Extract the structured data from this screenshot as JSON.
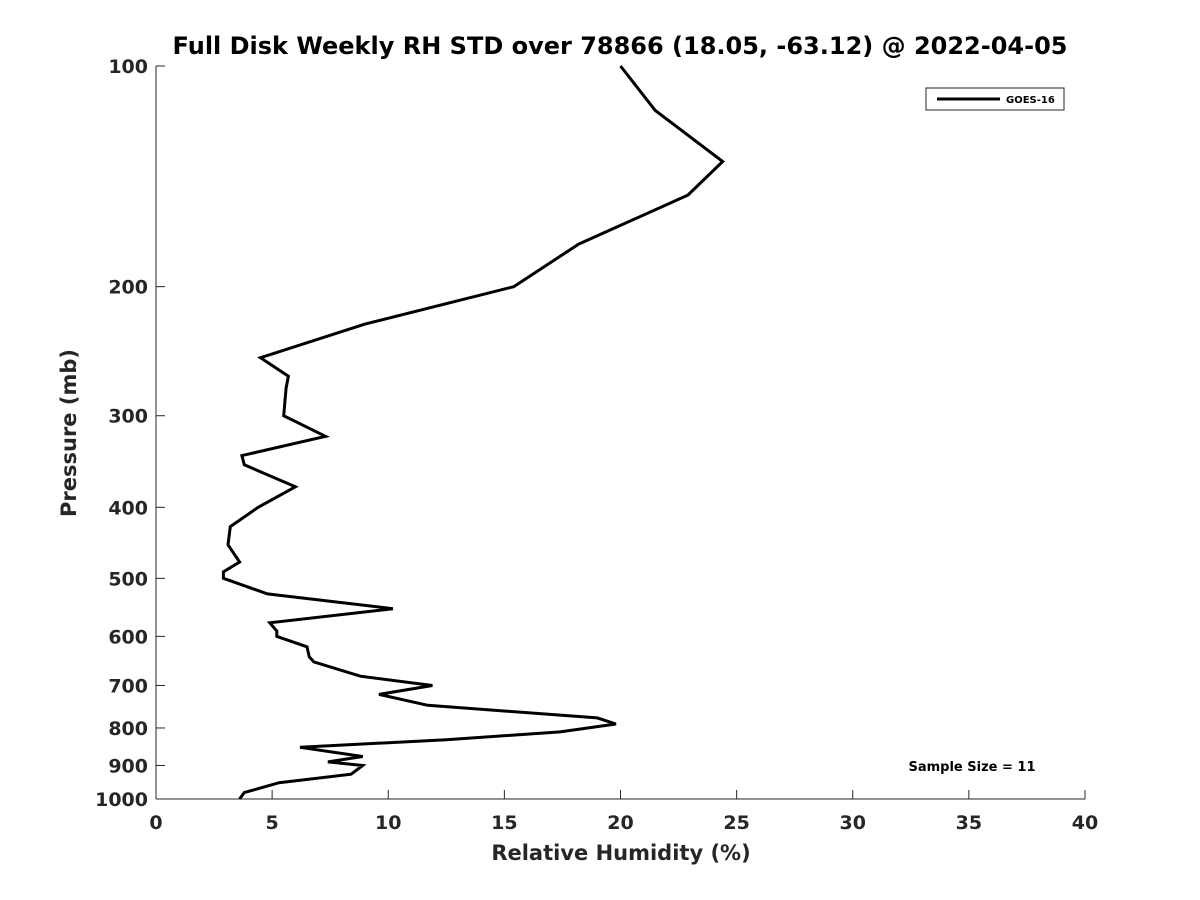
{
  "chart_data": {
    "type": "line",
    "title": "Full Disk Weekly RH STD over 78866 (18.05, -63.12) @ 2022-04-05",
    "xlabel": "Relative Humidity (%)",
    "ylabel": "Pressure (mb)",
    "xlim": [
      0,
      40
    ],
    "ylim": [
      100,
      1000
    ],
    "y_scale": "log",
    "y_reversed": true,
    "x_ticks": [
      "0",
      "5",
      "10",
      "15",
      "20",
      "25",
      "30",
      "35",
      "40"
    ],
    "y_ticks": [
      "100",
      "200",
      "300",
      "400",
      "500",
      "600",
      "700",
      "800",
      "900",
      "1000"
    ],
    "legend_position": "top-right",
    "grid": false,
    "series": [
      {
        "name": "GOES-16",
        "color": "#000000",
        "points": [
          [
            20.0,
            100
          ],
          [
            21.5,
            115
          ],
          [
            24.4,
            135
          ],
          [
            22.9,
            150
          ],
          [
            18.2,
            175
          ],
          [
            15.4,
            200
          ],
          [
            9.0,
            225
          ],
          [
            4.5,
            250
          ],
          [
            5.7,
            265
          ],
          [
            5.6,
            275
          ],
          [
            5.5,
            300
          ],
          [
            7.3,
            320
          ],
          [
            3.7,
            340
          ],
          [
            3.8,
            350
          ],
          [
            6.0,
            375
          ],
          [
            4.4,
            400
          ],
          [
            3.2,
            425
          ],
          [
            3.1,
            450
          ],
          [
            3.6,
            475
          ],
          [
            2.9,
            490
          ],
          [
            2.9,
            500
          ],
          [
            4.8,
            525
          ],
          [
            10.2,
            550
          ],
          [
            4.9,
            575
          ],
          [
            5.2,
            590
          ],
          [
            5.2,
            600
          ],
          [
            6.5,
            620
          ],
          [
            6.6,
            640
          ],
          [
            6.8,
            650
          ],
          [
            8.8,
            680
          ],
          [
            11.9,
            700
          ],
          [
            9.6,
            720
          ],
          [
            11.7,
            745
          ],
          [
            19.0,
            775
          ],
          [
            19.8,
            790
          ],
          [
            17.4,
            810
          ],
          [
            12.5,
            830
          ],
          [
            6.2,
            850
          ],
          [
            8.9,
            875
          ],
          [
            7.4,
            890
          ],
          [
            8.9,
            900
          ],
          [
            8.4,
            925
          ],
          [
            5.3,
            950
          ],
          [
            3.8,
            980
          ],
          [
            3.6,
            1000
          ]
        ]
      }
    ],
    "annotations": [
      "Sample Size = 11"
    ]
  }
}
